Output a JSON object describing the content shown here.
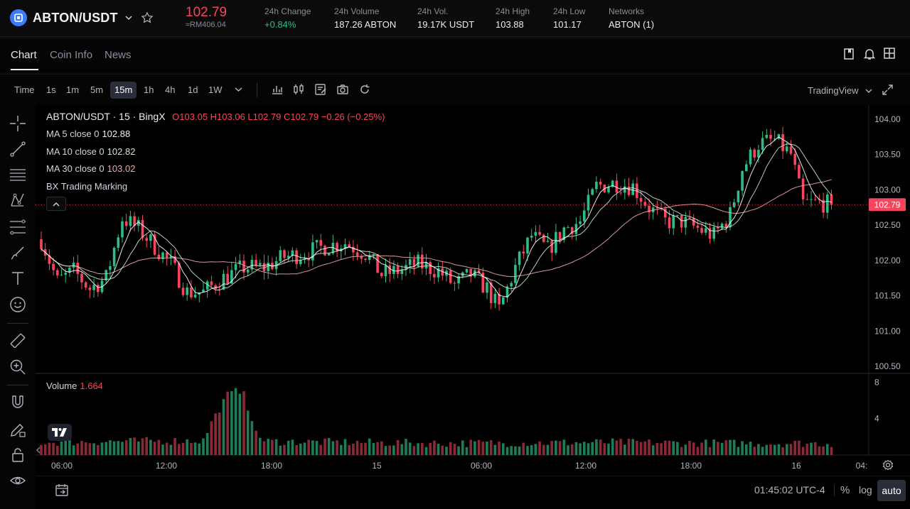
{
  "header": {
    "pair": "ABTON/USDT",
    "last_price": "102.79",
    "fiat_price": "≈RM406.04",
    "stats": [
      {
        "label": "24h Change",
        "value": "+0.84%",
        "tone": "up"
      },
      {
        "label": "24h Volume",
        "value": "187.26 ABTON",
        "tone": "neutral"
      },
      {
        "label": "24h Vol.",
        "value": "19.17K USDT",
        "tone": "neutral"
      },
      {
        "label": "24h High",
        "value": "103.88",
        "tone": "neutral"
      },
      {
        "label": "24h Low",
        "value": "101.17",
        "tone": "neutral"
      },
      {
        "label": "Networks",
        "value": "ABTON (1)",
        "tone": "neutral"
      }
    ]
  },
  "tabs": [
    "Chart",
    "Coin Info",
    "News"
  ],
  "toolbar": {
    "timeframes": [
      "Time",
      "1s",
      "1m",
      "5m",
      "15m",
      "1h",
      "4h",
      "1d",
      "1W"
    ],
    "active_timeframe": "15m",
    "view_mode": "TradingView"
  },
  "legend": {
    "title": "ABTON/USDT · 15 · BingX",
    "ohlc": "O103.05 H103.06 L102.79 C102.79 −0.26 (−0.25%)",
    "ma5_label": "MA 5 close 0",
    "ma5_value": "102.88",
    "ma10_label": "MA 10 close 0",
    "ma10_value": "102.82",
    "ma30_label": "MA 30 close 0",
    "ma30_value": "103.02",
    "marking": "BX Trading Marking",
    "volume_label": "Volume",
    "volume_value": "1.664"
  },
  "bottom": {
    "time": "01:45:02 UTC-4",
    "percent": "%",
    "log": "log",
    "auto": "auto"
  },
  "colors": {
    "up": "#2ebd85",
    "down": "#f6465d",
    "up_vol": "#1e7d57",
    "down_vol": "#8a2a36",
    "ma5": "#ffffff",
    "ma10": "#c8e6c9",
    "ma30": "#f0a7a7",
    "accent": "#3b7cff"
  },
  "chart_data": {
    "type": "candlestick",
    "price_axis_ticks": [
      "104.00",
      "103.50",
      "103.00",
      "102.50",
      "102.00",
      "101.50",
      "101.00",
      "100.50"
    ],
    "volume_axis_ticks": [
      "8",
      "4"
    ],
    "time_axis_ticks": [
      "06:00",
      "12:00",
      "18:00",
      "15",
      "06:00",
      "12:00",
      "18:00",
      "16",
      "04:"
    ],
    "current_price_label": "102.79",
    "ylim": [
      100.4,
      104.2
    ],
    "volume_ylim": [
      0,
      8.8
    ],
    "anchors": [
      [
        0,
        102.3
      ],
      [
        4,
        101.7
      ],
      [
        8,
        101.85
      ],
      [
        12,
        101.6
      ],
      [
        16,
        101.75
      ],
      [
        20,
        102.6
      ],
      [
        24,
        102.45
      ],
      [
        28,
        102.2
      ],
      [
        32,
        101.95
      ],
      [
        36,
        101.55
      ],
      [
        40,
        101.55
      ],
      [
        45,
        101.75
      ],
      [
        50,
        101.9
      ],
      [
        55,
        101.9
      ],
      [
        60,
        102.05
      ],
      [
        65,
        102.1
      ],
      [
        70,
        102.2
      ],
      [
        75,
        102.25
      ],
      [
        80,
        102.1
      ],
      [
        84,
        101.8
      ],
      [
        88,
        101.85
      ],
      [
        93,
        101.95
      ],
      [
        98,
        101.85
      ],
      [
        102,
        101.65
      ],
      [
        106,
        101.8
      ],
      [
        110,
        101.6
      ],
      [
        113,
        101.3
      ],
      [
        117,
        101.9
      ],
      [
        121,
        102.35
      ],
      [
        125,
        102.15
      ],
      [
        129,
        102.45
      ],
      [
        133,
        102.55
      ],
      [
        137,
        103.05
      ],
      [
        142,
        103.1
      ],
      [
        146,
        103.05
      ],
      [
        150,
        102.75
      ],
      [
        154,
        102.55
      ],
      [
        158,
        102.55
      ],
      [
        162,
        102.45
      ],
      [
        166,
        102.35
      ],
      [
        170,
        102.65
      ],
      [
        173,
        103.3
      ],
      [
        177,
        103.65
      ],
      [
        181,
        103.7
      ],
      [
        185,
        103.5
      ],
      [
        188,
        102.8
      ],
      [
        192,
        102.82
      ],
      [
        195,
        102.79
      ]
    ],
    "volume_profile": [
      [
        0,
        1.3
      ],
      [
        15,
        1.4
      ],
      [
        40,
        1.5
      ],
      [
        42,
        3.5
      ],
      [
        46,
        6.5
      ],
      [
        50,
        7.2
      ],
      [
        52,
        3.2
      ],
      [
        55,
        1.4
      ],
      [
        100,
        1.2
      ],
      [
        140,
        1.3
      ],
      [
        170,
        1.2
      ],
      [
        195,
        1.2
      ]
    ]
  }
}
